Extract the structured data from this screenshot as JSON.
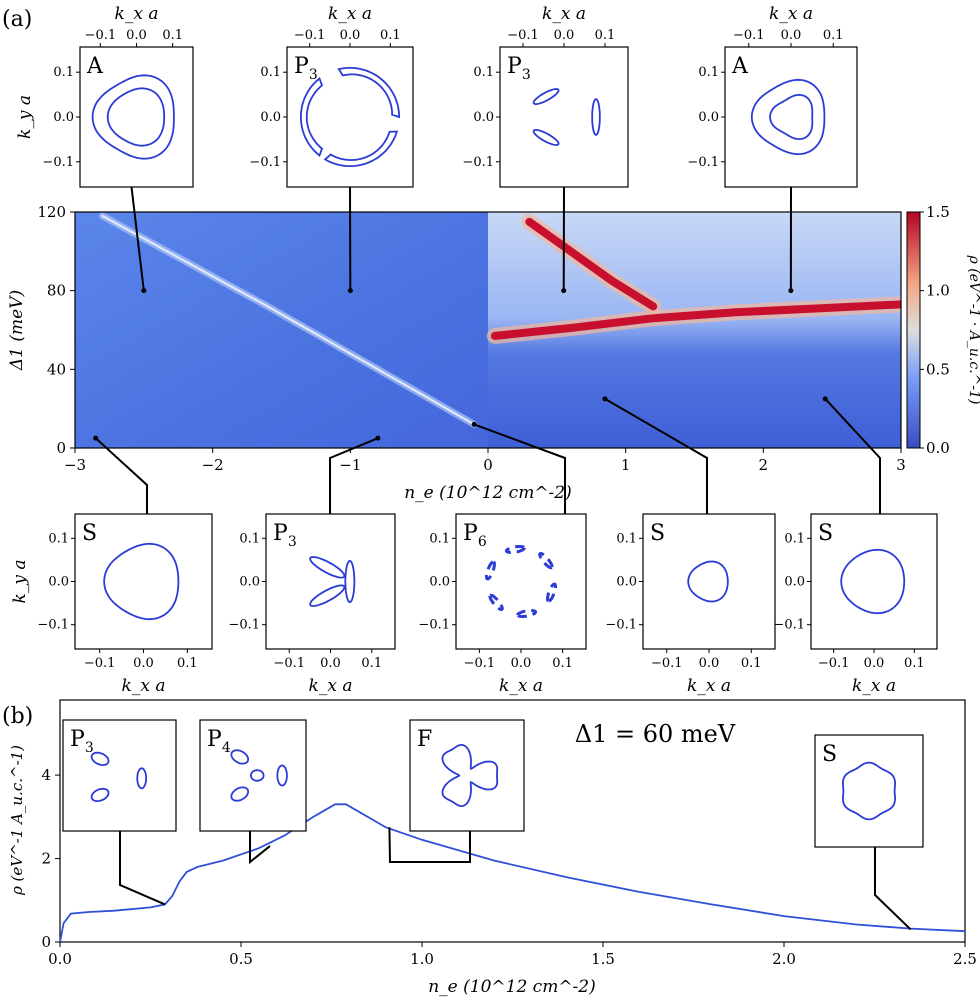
{
  "panel_a_tag": "(a)",
  "panel_b_tag": "(b)",
  "colors": {
    "fermi_contour": "#2b3bd6",
    "line": "#3050d8",
    "axis": "#000000"
  },
  "chart_data": [
    {
      "type": "heatmap",
      "panel": "a",
      "xlabel": "n_e (10^12 cm^-2)",
      "ylabel": "Δ1 (meV)",
      "colorbar_label": "ρ (eV^-1 · A_u.c.^-1)",
      "xlim": [
        -3,
        3
      ],
      "ylim": [
        0,
        120
      ],
      "x_ticks": [
        "−3",
        "−2",
        "−1",
        "0",
        "1",
        "2",
        "3"
      ],
      "y_ticks": [
        "0",
        "40",
        "80",
        "120"
      ],
      "colorbar_range": [
        0.0,
        1.5
      ],
      "colorbar_ticks": [
        "0.0",
        "0.5",
        "1.0",
        "1.5"
      ],
      "features": [
        {
          "description": "hole-side ridge",
          "x": [
            -2.8,
            -2.2,
            -1.6,
            -1.0,
            -0.5,
            -0.1
          ],
          "y": [
            118,
            95,
            72,
            48,
            28,
            12
          ]
        },
        {
          "description": "electron-side ridge",
          "x": [
            0.05,
            0.6,
            1.2,
            1.8,
            2.4,
            3.0
          ],
          "y": [
            57,
            61,
            66,
            69,
            71,
            73
          ]
        },
        {
          "description": "electron-side upper ridge",
          "x": [
            0.3,
            0.6,
            0.9,
            1.2
          ],
          "y": [
            115,
            100,
            85,
            72
          ]
        }
      ],
      "insets_top": [
        {
          "label": "A",
          "x": -2.5,
          "y": 80
        },
        {
          "label": "P3",
          "x": -1.0,
          "y": 80
        },
        {
          "label": "P3",
          "x": 0.55,
          "y": 80
        },
        {
          "label": "A",
          "x": 2.2,
          "y": 80
        }
      ],
      "insets_bottom": [
        {
          "label": "S",
          "x": -2.85,
          "y": 5
        },
        {
          "label": "P3",
          "x": -0.8,
          "y": 5
        },
        {
          "label": "P6",
          "x": -0.1,
          "y": 12
        },
        {
          "label": "S",
          "x": 0.85,
          "y": 25
        },
        {
          "label": "S",
          "x": 2.45,
          "y": 25
        }
      ],
      "inset_axes": {
        "xlabel": "k_x a",
        "ylabel": "k_y a",
        "x_ticks": [
          "−0.1",
          "0.0",
          "0.1"
        ],
        "y_ticks": [
          "0.1",
          "0.0",
          "−0.1"
        ]
      }
    },
    {
      "type": "line",
      "panel": "b",
      "annotation": "Δ1 = 60 meV",
      "xlabel": "n_e (10^12 cm^-2)",
      "ylabel": "ρ (eV^-1 A_u.c.^-1)",
      "xlim": [
        0,
        2.5
      ],
      "ylim": [
        0,
        5.8
      ],
      "x_ticks": [
        "0.0",
        "0.5",
        "1.0",
        "1.5",
        "2.0",
        "2.5"
      ],
      "y_ticks": [
        "0",
        "2",
        "4"
      ],
      "series": [
        {
          "x": [
            0.0,
            0.01,
            0.03,
            0.08,
            0.15,
            0.25,
            0.29,
            0.31,
            0.33,
            0.35,
            0.38,
            0.45,
            0.55,
            0.62,
            0.7,
            0.76,
            0.79,
            0.83,
            0.9,
            1.0,
            1.2,
            1.4,
            1.6,
            1.8,
            2.0,
            2.2,
            2.35,
            2.5
          ],
          "y": [
            0.0,
            0.45,
            0.68,
            0.72,
            0.75,
            0.83,
            0.9,
            1.1,
            1.45,
            1.68,
            1.8,
            1.95,
            2.25,
            2.55,
            3.0,
            3.3,
            3.3,
            3.1,
            2.75,
            2.45,
            1.95,
            1.55,
            1.2,
            0.9,
            0.62,
            0.42,
            0.32,
            0.26
          ]
        }
      ],
      "insets": [
        {
          "label": "P3",
          "x": 0.29,
          "y": 0.9
        },
        {
          "label": "P4",
          "x": 0.58,
          "y": 2.3
        },
        {
          "label": "F",
          "x": 0.91,
          "y": 2.75
        },
        {
          "label": "S",
          "x": 2.35,
          "y": 0.3
        }
      ]
    }
  ]
}
